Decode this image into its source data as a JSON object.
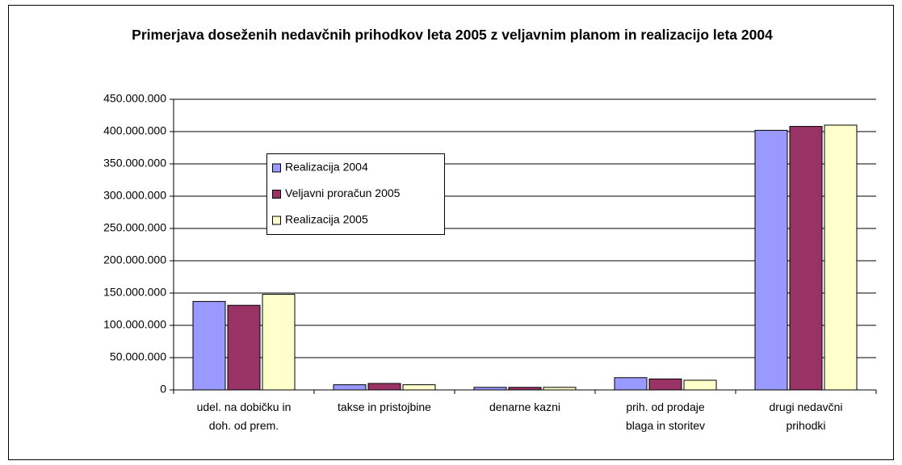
{
  "chart_data": {
    "type": "bar",
    "title": "Primerjava doseženih nedavčnih prihodkov leta 2005 z veljavnim planom in realizacijo leta 2004",
    "categories": [
      "udel. na dobičku in doh. od prem.",
      "takse in pristojbine",
      "denarne kazni",
      "prih. od prodaje blaga in storitev",
      "drugi nedavčni prihodki"
    ],
    "series": [
      {
        "name": "Realizacija 2004",
        "color": "#9999ff",
        "values": [
          137000000,
          8000000,
          4000000,
          19000000,
          402000000
        ]
      },
      {
        "name": "Veljavni proračun 2005",
        "color": "#993366",
        "values": [
          131000000,
          10000000,
          4000000,
          17000000,
          408000000
        ]
      },
      {
        "name": "Realizacija 2005",
        "color": "#ffffcc",
        "values": [
          148000000,
          8000000,
          4000000,
          15000000,
          410000000
        ]
      }
    ],
    "ylim": [
      0,
      450000000
    ],
    "yticks": [
      0,
      {
        "value": 50000000,
        "label": "50.000.000"
      },
      {
        "value": 100000000,
        "label": "100.000.000"
      },
      {
        "value": 150000000,
        "label": "150.000.000"
      },
      {
        "value": 200000000,
        "label": "200.000.000"
      },
      {
        "value": 250000000,
        "label": "250.000.000"
      },
      {
        "value": 300000000,
        "label": "300.000.000"
      },
      {
        "value": 350000000,
        "label": "350.000.000"
      },
      {
        "value": 400000000,
        "label": "400.000.000"
      },
      {
        "value": 450000000,
        "label": "450.000.000"
      }
    ],
    "grid": true,
    "legend": "upper-left"
  }
}
